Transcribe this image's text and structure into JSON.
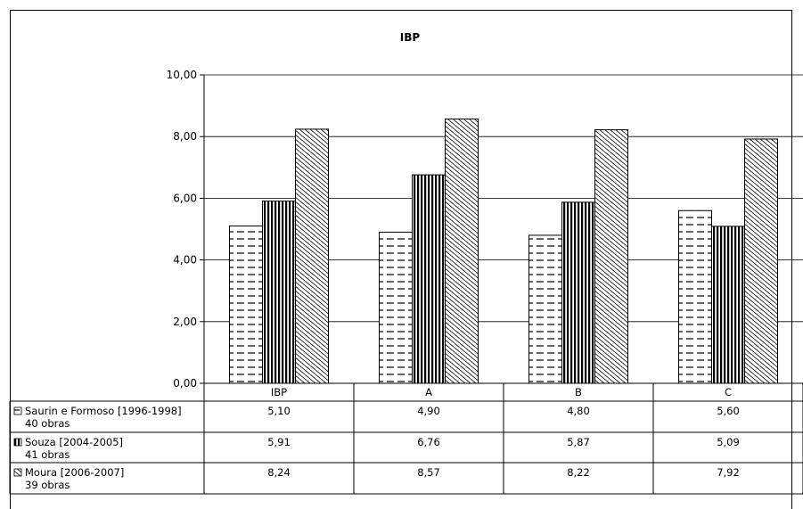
{
  "chart_data": {
    "type": "bar",
    "title": "IBP",
    "categories": [
      "IBP",
      "A",
      "B",
      "C"
    ],
    "ylim": [
      0,
      10
    ],
    "yticks": [
      "0,00",
      "2,00",
      "4,00",
      "6,00",
      "8,00",
      "10,00"
    ],
    "grid": true,
    "legend_placement": "data-table-left",
    "series": [
      {
        "name": "Saurin e Formoso [1996-1998]",
        "subtitle": "40 obras",
        "pattern": "dashes",
        "values": [
          5.1,
          4.9,
          4.8,
          5.6
        ],
        "labels": [
          "5,10",
          "4,90",
          "4,80",
          "5,60"
        ]
      },
      {
        "name": "Souza [2004-2005]",
        "subtitle": "41 obras",
        "pattern": "vertical-stripes",
        "values": [
          5.91,
          6.76,
          5.87,
          5.09
        ],
        "labels": [
          "5,91",
          "6,76",
          "5,87",
          "5,09"
        ]
      },
      {
        "name": "Moura [2006-2007]",
        "subtitle": "39 obras",
        "pattern": "diagonal-hatch",
        "values": [
          8.24,
          8.57,
          8.22,
          7.92
        ],
        "labels": [
          "8,24",
          "8,57",
          "8,22",
          "7,92"
        ]
      }
    ]
  }
}
